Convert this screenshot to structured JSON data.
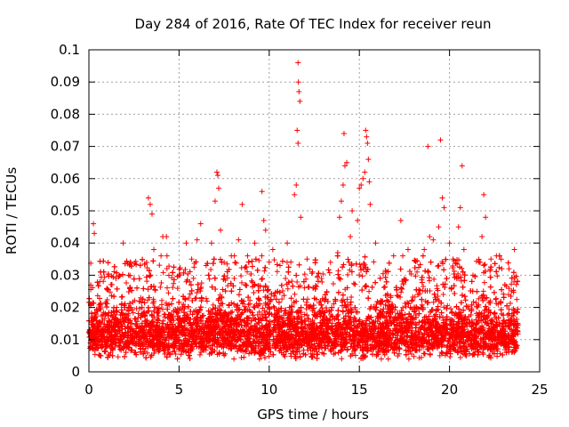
{
  "chart_data": {
    "type": "scatter",
    "title": "Day 284 of 2016, Rate Of TEC Index for receiver reun",
    "xlabel": "GPS time / hours",
    "ylabel": "ROTI / TECUs",
    "xlim": [
      0,
      25
    ],
    "ylim": [
      0,
      0.1
    ],
    "xticks": [
      0,
      5,
      10,
      15,
      20,
      25
    ],
    "xtick_labels": [
      "0",
      "5",
      "10",
      "15",
      "20",
      "25"
    ],
    "yticks": [
      0,
      0.01,
      0.02,
      0.03,
      0.04,
      0.05,
      0.06,
      0.07,
      0.08,
      0.09,
      0.1
    ],
    "ytick_labels": [
      "0",
      "0.01",
      "0.02",
      "0.03",
      "0.04",
      "0.05",
      "0.06",
      "0.07",
      "0.08",
      "0.09",
      "0.1"
    ],
    "grid": true,
    "marker": "plus",
    "color": "#ff0000",
    "gridcolor": "#a0a0a0",
    "series": [
      {
        "name": "ROTI",
        "band": {
          "x_start": 0.0,
          "x_end": 23.8,
          "approx_count": 9000,
          "typical_range": [
            0.004,
            0.025
          ],
          "median": 0.012
        },
        "points": [
          [
            0.25,
            0.046
          ],
          [
            0.3,
            0.043
          ],
          [
            0.6,
            0.028
          ],
          [
            1.5,
            0.029
          ],
          [
            1.9,
            0.04
          ],
          [
            2.2,
            0.03
          ],
          [
            3.3,
            0.054
          ],
          [
            3.4,
            0.052
          ],
          [
            3.5,
            0.049
          ],
          [
            3.6,
            0.038
          ],
          [
            4.0,
            0.036
          ],
          [
            4.1,
            0.042
          ],
          [
            4.3,
            0.042
          ],
          [
            5.0,
            0.03
          ],
          [
            5.4,
            0.04
          ],
          [
            5.7,
            0.035
          ],
          [
            6.0,
            0.041
          ],
          [
            6.2,
            0.046
          ],
          [
            6.5,
            0.033
          ],
          [
            6.8,
            0.04
          ],
          [
            7.0,
            0.053
          ],
          [
            7.1,
            0.062
          ],
          [
            7.15,
            0.061
          ],
          [
            7.2,
            0.057
          ],
          [
            7.3,
            0.044
          ],
          [
            7.5,
            0.034
          ],
          [
            7.9,
            0.036
          ],
          [
            8.3,
            0.041
          ],
          [
            8.5,
            0.052
          ],
          [
            8.8,
            0.036
          ],
          [
            9.2,
            0.04
          ],
          [
            9.6,
            0.056
          ],
          [
            9.7,
            0.047
          ],
          [
            9.8,
            0.044
          ],
          [
            10.2,
            0.038
          ],
          [
            10.6,
            0.033
          ],
          [
            11.0,
            0.04
          ],
          [
            11.4,
            0.055
          ],
          [
            11.5,
            0.058
          ],
          [
            11.55,
            0.075
          ],
          [
            11.6,
            0.096
          ],
          [
            11.62,
            0.09
          ],
          [
            11.65,
            0.087
          ],
          [
            11.7,
            0.084
          ],
          [
            11.6,
            0.071
          ],
          [
            11.75,
            0.048
          ],
          [
            12.1,
            0.035
          ],
          [
            12.4,
            0.031
          ],
          [
            12.9,
            0.029
          ],
          [
            13.4,
            0.034
          ],
          [
            13.8,
            0.037
          ],
          [
            13.9,
            0.048
          ],
          [
            14.0,
            0.053
          ],
          [
            14.1,
            0.058
          ],
          [
            14.15,
            0.074
          ],
          [
            14.2,
            0.064
          ],
          [
            14.3,
            0.065
          ],
          [
            14.5,
            0.042
          ],
          [
            14.6,
            0.05
          ],
          [
            14.9,
            0.047
          ],
          [
            15.0,
            0.057
          ],
          [
            15.1,
            0.058
          ],
          [
            15.2,
            0.06
          ],
          [
            15.3,
            0.062
          ],
          [
            15.35,
            0.075
          ],
          [
            15.4,
            0.073
          ],
          [
            15.45,
            0.071
          ],
          [
            15.5,
            0.066
          ],
          [
            15.55,
            0.059
          ],
          [
            15.6,
            0.052
          ],
          [
            15.9,
            0.04
          ],
          [
            16.5,
            0.031
          ],
          [
            16.9,
            0.036
          ],
          [
            17.3,
            0.047
          ],
          [
            17.7,
            0.038
          ],
          [
            18.2,
            0.031
          ],
          [
            18.6,
            0.038
          ],
          [
            18.8,
            0.07
          ],
          [
            18.9,
            0.042
          ],
          [
            19.1,
            0.041
          ],
          [
            19.4,
            0.045
          ],
          [
            19.5,
            0.072
          ],
          [
            19.6,
            0.054
          ],
          [
            19.7,
            0.051
          ],
          [
            20.0,
            0.04
          ],
          [
            20.2,
            0.035
          ],
          [
            20.5,
            0.045
          ],
          [
            20.6,
            0.051
          ],
          [
            20.7,
            0.064
          ],
          [
            20.8,
            0.038
          ],
          [
            21.3,
            0.03
          ],
          [
            21.7,
            0.034
          ],
          [
            21.8,
            0.042
          ],
          [
            21.9,
            0.055
          ],
          [
            22.0,
            0.048
          ],
          [
            22.3,
            0.035
          ],
          [
            22.6,
            0.036
          ],
          [
            22.9,
            0.032
          ],
          [
            23.3,
            0.032
          ],
          [
            23.6,
            0.038
          ]
        ]
      }
    ]
  }
}
